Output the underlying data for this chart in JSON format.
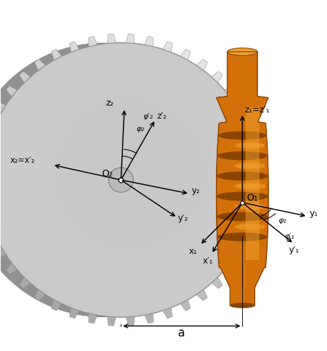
{
  "bg_color": "#ffffff",
  "gear_color": "#c8c8c8",
  "gear_edge_color": "#909090",
  "gear_dark_color": "#909090",
  "gear_side_color": "#aaaaaa",
  "worm_color": "#d4700a",
  "worm_dark_color": "#8b4500",
  "worm_light_color": "#f0a030",
  "worm_mid_color": "#c06008",
  "figsize": [
    4.74,
    5.1
  ],
  "dpi": 100,
  "labels": {
    "O2": "O₂",
    "O1": "O₁",
    "z2": "z₂",
    "z2p": "z′₂",
    "y2": "y₂",
    "y2p": "y′₂",
    "x2": "x₂=x′₂",
    "x1": "x₁",
    "x1p": "x′₁",
    "z1": "z₁=z′₁",
    "y1": "y₁",
    "y1p": "y′₁",
    "phi1": "φ₁",
    "phi1p": "φ′₁",
    "phi2": "φ₂",
    "phi2p": "φ′₂",
    "a": "a"
  }
}
